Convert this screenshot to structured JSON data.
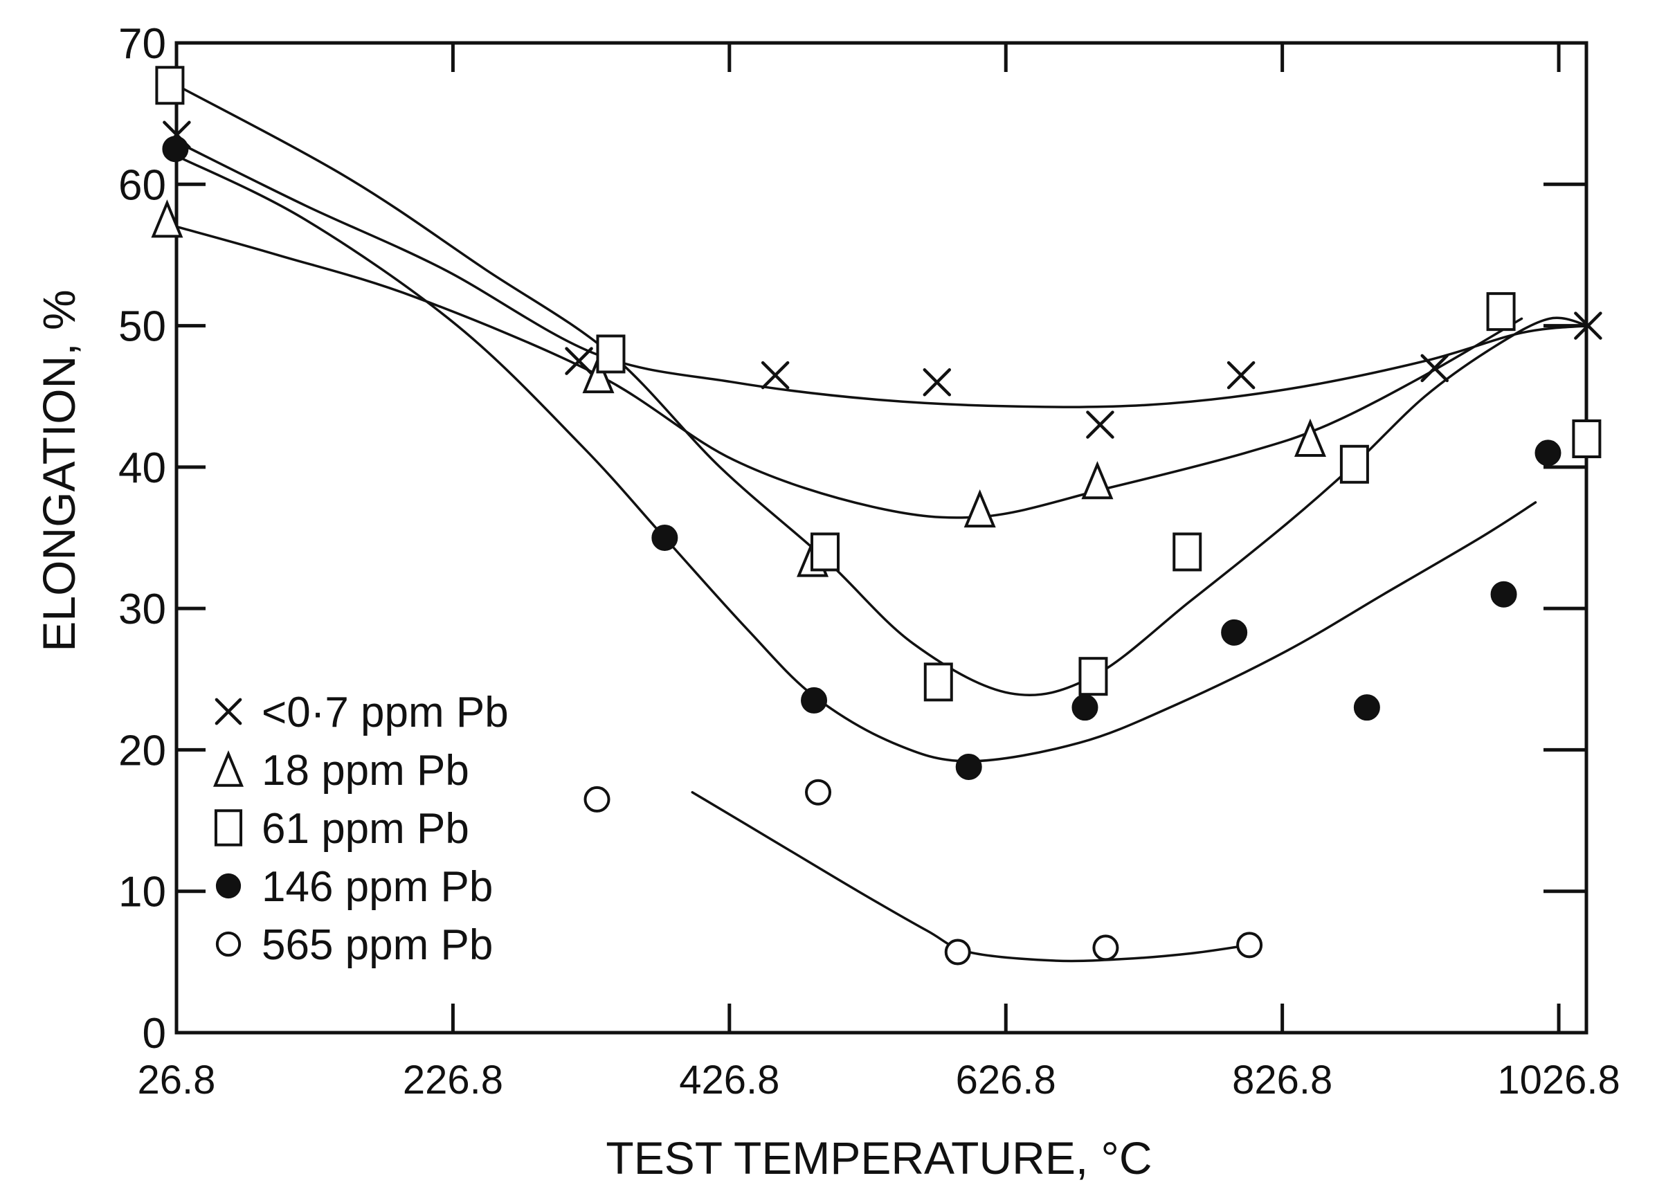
{
  "chart_data": {
    "type": "scatter",
    "title": "",
    "xlabel": "TEST TEMPERATURE, °C",
    "ylabel": "ELONGATION, %",
    "xlim": [
      26.8,
      1046.8
    ],
    "ylim": [
      0,
      70
    ],
    "xticks": [
      26.8,
      226.8,
      426.8,
      626.8,
      826.8,
      1026.8
    ],
    "xtick_labels": [
      "26.8",
      "226.8",
      "426.8",
      "626.8",
      "826.8",
      "1026.8"
    ],
    "yticks": [
      0,
      10,
      20,
      30,
      40,
      50,
      60,
      70
    ],
    "ytick_labels": [
      "0",
      "10",
      "20",
      "30",
      "40",
      "50",
      "60",
      "70"
    ],
    "legend_position": "lower-left",
    "series": [
      {
        "name": "<0·7 ppm Pb",
        "marker": "cross",
        "points": [
          [
            27,
            63.5
          ],
          [
            318,
            47.5
          ],
          [
            460,
            46.5
          ],
          [
            577,
            46
          ],
          [
            695,
            43
          ],
          [
            797,
            46.5
          ],
          [
            937,
            47
          ],
          [
            1048,
            50
          ]
        ],
        "curve": [
          [
            27,
            63
          ],
          [
            120,
            58.5
          ],
          [
            220,
            54
          ],
          [
            330,
            48
          ],
          [
            430,
            46
          ],
          [
            530,
            44.8
          ],
          [
            630,
            44.3
          ],
          [
            730,
            44.4
          ],
          [
            830,
            45.5
          ],
          [
            930,
            47.5
          ],
          [
            1000,
            49.5
          ],
          [
            1048,
            50
          ]
        ]
      },
      {
        "name": "18 ppm Pb",
        "marker": "triangle",
        "points": [
          [
            20,
            57.5
          ],
          [
            332,
            46.5
          ],
          [
            487,
            33.5
          ],
          [
            608,
            37
          ],
          [
            693,
            39
          ],
          [
            847,
            42
          ]
        ],
        "curve": [
          [
            27,
            57
          ],
          [
            100,
            55
          ],
          [
            200,
            52
          ],
          [
            332,
            46.5
          ],
          [
            430,
            40.5
          ],
          [
            530,
            37.2
          ],
          [
            610,
            36.5
          ],
          [
            700,
            38.5
          ],
          [
            800,
            41
          ],
          [
            860,
            43
          ],
          [
            930,
            46.5
          ],
          [
            1000,
            50.5
          ]
        ]
      },
      {
        "name": "61 ppm Pb",
        "marker": "square",
        "points": [
          [
            22,
            67
          ],
          [
            341,
            48
          ],
          [
            496,
            34
          ],
          [
            578,
            24.8
          ],
          [
            690,
            25.2
          ],
          [
            758,
            34
          ],
          [
            879,
            40.2
          ],
          [
            985,
            51
          ],
          [
            1047,
            42
          ]
        ],
        "curve": [
          [
            27,
            67
          ],
          [
            150,
            60.5
          ],
          [
            250,
            54
          ],
          [
            341,
            48
          ],
          [
            420,
            40
          ],
          [
            496,
            33.5
          ],
          [
            560,
            27.5
          ],
          [
            630,
            24
          ],
          [
            690,
            25.2
          ],
          [
            760,
            30.5
          ],
          [
            830,
            36
          ],
          [
            879,
            40.2
          ],
          [
            930,
            45
          ],
          [
            980,
            48.5
          ],
          [
            1020,
            50.5
          ],
          [
            1048,
            50
          ]
        ]
      },
      {
        "name": "146 ppm Pb",
        "marker": "filled-circle",
        "points": [
          [
            26,
            62.5
          ],
          [
            380,
            35
          ],
          [
            488,
            23.5
          ],
          [
            600,
            18.8
          ],
          [
            684,
            23
          ],
          [
            792,
            28.3
          ],
          [
            888,
            23
          ],
          [
            1019,
            41
          ],
          [
            987,
            31
          ]
        ],
        "curve": [
          [
            27,
            62
          ],
          [
            120,
            57.5
          ],
          [
            230,
            50
          ],
          [
            320,
            41.5
          ],
          [
            380,
            35
          ],
          [
            440,
            28.5
          ],
          [
            488,
            23.8
          ],
          [
            545,
            20.5
          ],
          [
            600,
            19.2
          ],
          [
            680,
            20.5
          ],
          [
            750,
            23.2
          ],
          [
            830,
            27
          ],
          [
            900,
            31
          ],
          [
            970,
            35
          ],
          [
            1010,
            37.5
          ]
        ]
      },
      {
        "name": "565 ppm Pb",
        "marker": "open-circle",
        "points": [
          [
            331,
            16.5
          ],
          [
            491,
            17
          ],
          [
            592,
            5.7
          ],
          [
            699,
            6
          ],
          [
            803,
            6.2
          ]
        ],
        "curve": [
          [
            400,
            17
          ],
          [
            460,
            13.5
          ],
          [
            520,
            10
          ],
          [
            570,
            7.2
          ],
          [
            600,
            5.7
          ],
          [
            660,
            5.1
          ],
          [
            710,
            5.2
          ],
          [
            760,
            5.6
          ],
          [
            803,
            6.2
          ]
        ]
      }
    ]
  }
}
